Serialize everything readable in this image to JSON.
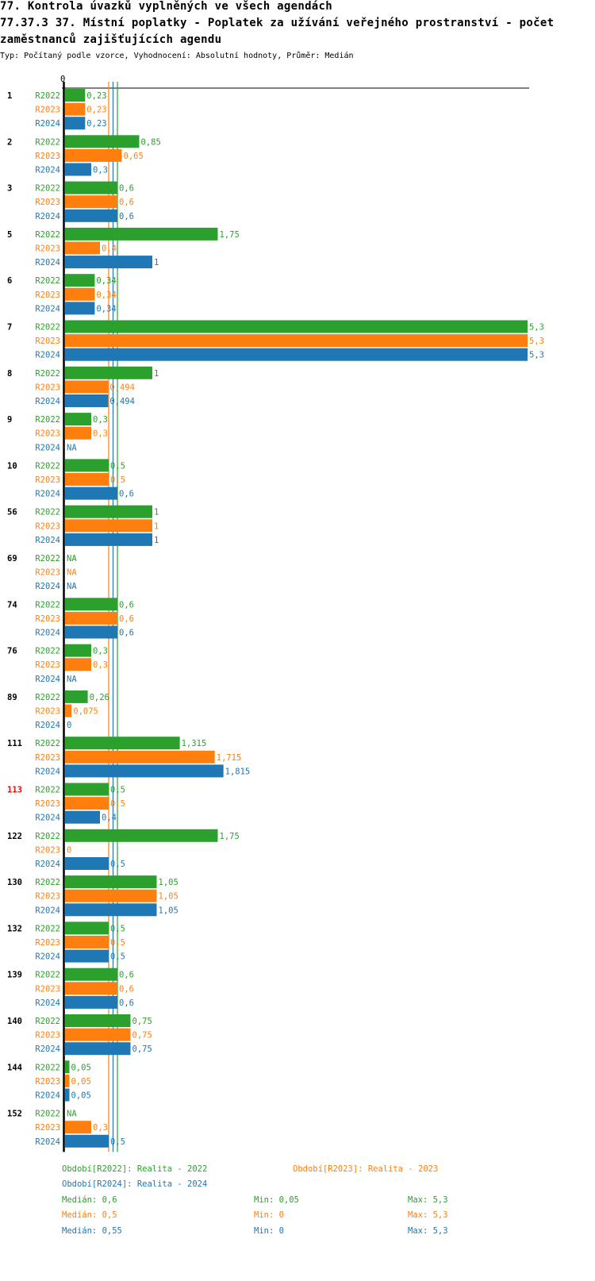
{
  "title1": "77. Kontrola úvazků vyplněných ve všech agendách",
  "title2": "77.37.3 37. Místní poplatky - Poplatek za užívání veřejného prostranství - počet",
  "title3": "zaměstnanců zajišťujících agendu",
  "subtitle": "Typ: Počítaný podle vzorce, Vyhodnocení: Absolutní hodnoty, Průměr: Medián",
  "colors": {
    "R2022": "#2ca02c",
    "R2023": "#ff7f0e",
    "R2024": "#1f77b4",
    "highlight": "#ff0000"
  },
  "chart_data": {
    "type": "bar",
    "orientation": "horizontal",
    "xlim": [
      0,
      5.3
    ],
    "x_tick_labels": [
      "0"
    ],
    "series_names": [
      "R2022",
      "R2023",
      "R2024"
    ],
    "categories": [
      "1",
      "2",
      "3",
      "5",
      "6",
      "7",
      "8",
      "9",
      "10",
      "56",
      "69",
      "74",
      "76",
      "89",
      "111",
      "113",
      "122",
      "130",
      "132",
      "139",
      "140",
      "144",
      "152"
    ],
    "highlighted_category": "113",
    "series": [
      {
        "name": "R2022",
        "values": [
          "0,23",
          "0,85",
          "0,6",
          "1,75",
          "0,34",
          "5,3",
          "1",
          "0,3",
          "0,5",
          "1",
          "NA",
          "0,6",
          "0,3",
          "0,26",
          "1,315",
          "0,5",
          "1,75",
          "1,05",
          "0,5",
          "0,6",
          "0,75",
          "0,05",
          "NA"
        ]
      },
      {
        "name": "R2023",
        "values": [
          "0,23",
          "0,65",
          "0,6",
          "0,4",
          "0,34",
          "5,3",
          "0,494",
          "0,3",
          "0,5",
          "1",
          "NA",
          "0,6",
          "0,3",
          "0,075",
          "1,715",
          "0,5",
          "0",
          "1,05",
          "0,5",
          "0,6",
          "0,75",
          "0,05",
          "0,3"
        ]
      },
      {
        "name": "R2024",
        "values": [
          "0,23",
          "0,3",
          "0,6",
          "1",
          "0,34",
          "5,3",
          "0,494",
          "NA",
          "0,6",
          "1",
          "NA",
          "0,6",
          "NA",
          "0",
          "1,815",
          "0,4",
          "0,5",
          "1,05",
          "0,5",
          "0,6",
          "0,75",
          "0,05",
          "0,5"
        ]
      }
    ],
    "medians": {
      "R2022": 0.6,
      "R2023": 0.5,
      "R2024": 0.55
    }
  },
  "legend": {
    "R2022": "Období[R2022]: Realita - 2022",
    "R2023": "Období[R2023]: Realita - 2023",
    "R2024": "Období[R2024]: Realita - 2024"
  },
  "stats": [
    {
      "median": "Medián: 0,6",
      "min": "Min: 0,05",
      "max": "Max: 5,3"
    },
    {
      "median": "Medián: 0,5",
      "min": "Min: 0",
      "max": "Max: 5,3"
    },
    {
      "median": "Medián: 0,55",
      "min": "Min: 0",
      "max": "Max: 5,3"
    }
  ]
}
